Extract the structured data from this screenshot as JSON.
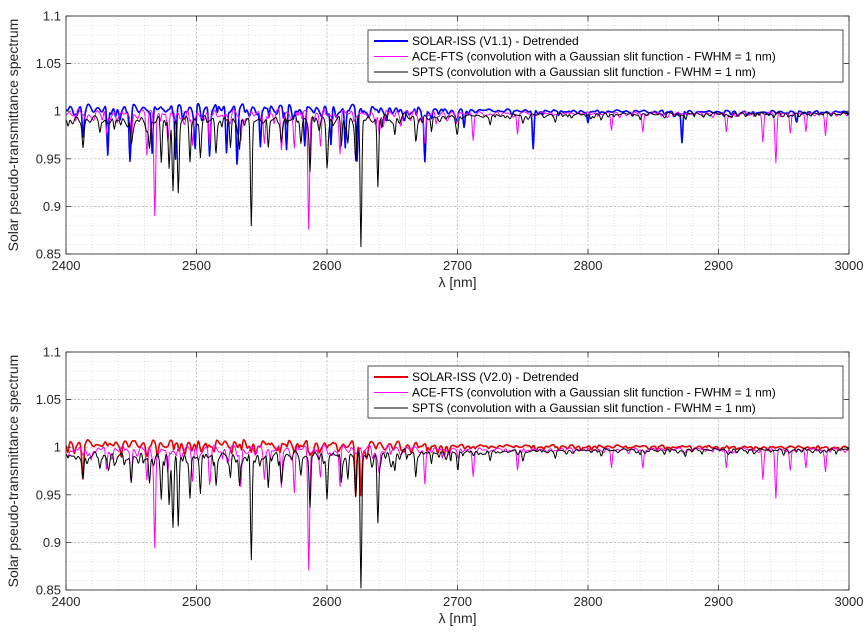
{
  "chart_data": [
    {
      "type": "line",
      "xlabel": "λ [nm]",
      "ylabel": "Solar pseudo-transmittance spectrum",
      "xlim": [
        2400,
        3000
      ],
      "ylim": [
        0.85,
        1.1
      ],
      "xticks": [
        "2400",
        "2500",
        "2600",
        "2700",
        "2800",
        "2900",
        "3000"
      ],
      "yticks": [
        "0.85",
        "0.9",
        "0.95",
        "1",
        "1.05",
        "1.1"
      ],
      "grid": true,
      "legend_position": "top-right",
      "series": [
        {
          "name": "SOLAR-ISS (V1.1) - Detrended",
          "color": "#0000ff",
          "baseline": [
            [
              2400,
              1.003
            ],
            [
              2550,
              1.004
            ],
            [
              2650,
              1.002
            ],
            [
              2800,
              1.0
            ],
            [
              3000,
              0.999
            ]
          ],
          "dips": [
            [
              2413,
              0.975
            ],
            [
              2432,
              0.95
            ],
            [
              2449,
              0.949
            ],
            [
              2466,
              0.962
            ],
            [
              2484,
              0.95
            ],
            [
              2499,
              0.963
            ],
            [
              2510,
              0.956
            ],
            [
              2523,
              0.956
            ],
            [
              2531,
              0.95
            ],
            [
              2549,
              0.96
            ],
            [
              2569,
              0.958
            ],
            [
              2583,
              0.963
            ],
            [
              2603,
              0.965
            ],
            [
              2614,
              0.972
            ],
            [
              2623,
              0.95
            ],
            [
              2675,
              0.955
            ],
            [
              2705,
              0.985
            ],
            [
              2758,
              0.96
            ],
            [
              2800,
              0.988
            ],
            [
              2872,
              0.966
            ],
            [
              2960,
              0.99
            ]
          ]
        },
        {
          "name": "ACE-FTS (convolution with a Gaussian slit function - FWHM = 1 nm)",
          "color": "#ff00ff",
          "baseline": [
            [
              2400,
              0.998
            ],
            [
              2600,
              0.998
            ],
            [
              3000,
              0.998
            ]
          ],
          "dips": [
            [
              2431,
              0.975
            ],
            [
              2450,
              0.972
            ],
            [
              2462,
              0.966
            ],
            [
              2468,
              0.899
            ],
            [
              2478,
              0.97
            ],
            [
              2497,
              0.965
            ],
            [
              2510,
              0.965
            ],
            [
              2534,
              0.968
            ],
            [
              2552,
              0.97
            ],
            [
              2565,
              0.96
            ],
            [
              2575,
              0.962
            ],
            [
              2586,
              0.884
            ],
            [
              2595,
              0.97
            ],
            [
              2610,
              0.966
            ],
            [
              2640,
              0.975
            ],
            [
              2675,
              0.966
            ],
            [
              2712,
              0.97
            ],
            [
              2746,
              0.976
            ],
            [
              2818,
              0.98
            ],
            [
              2842,
              0.978
            ],
            [
              2906,
              0.978
            ],
            [
              2934,
              0.967
            ],
            [
              2944,
              0.95
            ],
            [
              2955,
              0.976
            ],
            [
              2967,
              0.978
            ],
            [
              2982,
              0.974
            ]
          ]
        },
        {
          "name": "SPTS (convolution with a Gaussian slit function - FWHM = 1 nm)",
          "color": "#000000",
          "baseline": [
            [
              2400,
              0.991
            ],
            [
              2500,
              0.991
            ],
            [
              2600,
              0.992
            ],
            [
              2700,
              0.995
            ],
            [
              2800,
              0.997
            ],
            [
              3000,
              0.998
            ]
          ],
          "dips": [
            [
              2413,
              0.97
            ],
            [
              2426,
              0.98
            ],
            [
              2437,
              0.978
            ],
            [
              2450,
              0.97
            ],
            [
              2464,
              0.962
            ],
            [
              2473,
              0.945
            ],
            [
              2479,
              0.94
            ],
            [
              2482,
              0.928
            ],
            [
              2486,
              0.916
            ],
            [
              2495,
              0.95
            ],
            [
              2503,
              0.953
            ],
            [
              2515,
              0.963
            ],
            [
              2526,
              0.965
            ],
            [
              2533,
              0.96
            ],
            [
              2542,
              0.879
            ],
            [
              2555,
              0.96
            ],
            [
              2565,
              0.972
            ],
            [
              2580,
              0.974
            ],
            [
              2587,
              0.939
            ],
            [
              2600,
              0.95
            ],
            [
              2611,
              0.96
            ],
            [
              2616,
              0.968
            ],
            [
              2622,
              0.951
            ],
            [
              2626,
              0.856
            ],
            [
              2639,
              0.918
            ],
            [
              2652,
              0.975
            ],
            [
              2668,
              0.972
            ],
            [
              2680,
              0.984
            ],
            [
              2700,
              0.985
            ],
            [
              2725,
              0.986
            ],
            [
              2750,
              0.988
            ],
            [
              2775,
              0.989
            ],
            [
              2810,
              0.992
            ],
            [
              2840,
              0.992
            ],
            [
              2875,
              0.993
            ],
            [
              2910,
              0.994
            ],
            [
              2950,
              0.995
            ],
            [
              2980,
              0.995
            ]
          ]
        }
      ]
    },
    {
      "type": "line",
      "xlabel": "λ [nm]",
      "ylabel": "Solar pseudo-transmittance spectrum",
      "xlim": [
        2400,
        3000
      ],
      "ylim": [
        0.85,
        1.1
      ],
      "xticks": [
        "2400",
        "2500",
        "2600",
        "2700",
        "2800",
        "2900",
        "3000"
      ],
      "yticks": [
        "0.85",
        "0.9",
        "0.95",
        "1",
        "1.05",
        "1.1"
      ],
      "grid": true,
      "legend_position": "top-right",
      "series": [
        {
          "name": "SOLAR-ISS (V2.0) - Detrended",
          "color": "#e60000",
          "baseline": [
            [
              2400,
              1.004
            ],
            [
              2550,
              1.004
            ],
            [
              2650,
              1.002
            ],
            [
              2800,
              1.001
            ],
            [
              3000,
              1.0
            ]
          ],
          "dips": [
            [
              2413,
              0.976
            ],
            [
              2470,
              0.992
            ],
            [
              2500,
              0.994
            ],
            [
              2542,
              0.995
            ],
            [
              2587,
              0.992
            ],
            [
              2622,
              0.951
            ],
            [
              2626,
              0.952
            ],
            [
              2690,
              0.996
            ],
            [
              2760,
              0.996
            ],
            [
              2880,
              0.996
            ]
          ]
        },
        {
          "name": "ACE-FTS (convolution with a Gaussian slit function - FWHM = 1 nm)",
          "color": "#ff00ff",
          "baseline": [
            [
              2400,
              0.998
            ],
            [
              2600,
              0.998
            ],
            [
              3000,
              0.998
            ]
          ],
          "dips": [
            [
              2431,
              0.975
            ],
            [
              2450,
              0.972
            ],
            [
              2462,
              0.966
            ],
            [
              2468,
              0.899
            ],
            [
              2478,
              0.97
            ],
            [
              2497,
              0.965
            ],
            [
              2510,
              0.965
            ],
            [
              2534,
              0.968
            ],
            [
              2552,
              0.97
            ],
            [
              2565,
              0.96
            ],
            [
              2575,
              0.962
            ],
            [
              2586,
              0.884
            ],
            [
              2595,
              0.97
            ],
            [
              2610,
              0.966
            ],
            [
              2640,
              0.975
            ],
            [
              2675,
              0.966
            ],
            [
              2712,
              0.97
            ],
            [
              2746,
              0.976
            ],
            [
              2818,
              0.98
            ],
            [
              2842,
              0.978
            ],
            [
              2906,
              0.978
            ],
            [
              2934,
              0.967
            ],
            [
              2944,
              0.95
            ],
            [
              2955,
              0.976
            ],
            [
              2967,
              0.978
            ],
            [
              2982,
              0.974
            ]
          ]
        },
        {
          "name": "SPTS (convolution with a Gaussian slit function - FWHM = 1 nm)",
          "color": "#000000",
          "baseline": [
            [
              2400,
              0.991
            ],
            [
              2500,
              0.991
            ],
            [
              2600,
              0.992
            ],
            [
              2700,
              0.995
            ],
            [
              2800,
              0.997
            ],
            [
              3000,
              0.998
            ]
          ],
          "dips": [
            [
              2413,
              0.97
            ],
            [
              2426,
              0.98
            ],
            [
              2437,
              0.978
            ],
            [
              2450,
              0.97
            ],
            [
              2464,
              0.962
            ],
            [
              2473,
              0.945
            ],
            [
              2479,
              0.94
            ],
            [
              2482,
              0.928
            ],
            [
              2486,
              0.916
            ],
            [
              2495,
              0.95
            ],
            [
              2503,
              0.953
            ],
            [
              2515,
              0.963
            ],
            [
              2526,
              0.965
            ],
            [
              2533,
              0.96
            ],
            [
              2542,
              0.879
            ],
            [
              2555,
              0.96
            ],
            [
              2565,
              0.972
            ],
            [
              2580,
              0.974
            ],
            [
              2587,
              0.939
            ],
            [
              2600,
              0.95
            ],
            [
              2611,
              0.96
            ],
            [
              2616,
              0.968
            ],
            [
              2622,
              0.951
            ],
            [
              2626,
              0.856
            ],
            [
              2639,
              0.918
            ],
            [
              2652,
              0.975
            ],
            [
              2668,
              0.972
            ],
            [
              2680,
              0.984
            ],
            [
              2700,
              0.985
            ],
            [
              2725,
              0.986
            ],
            [
              2750,
              0.988
            ],
            [
              2775,
              0.989
            ],
            [
              2810,
              0.992
            ],
            [
              2840,
              0.992
            ],
            [
              2875,
              0.993
            ],
            [
              2910,
              0.994
            ],
            [
              2950,
              0.995
            ],
            [
              2980,
              0.995
            ]
          ]
        }
      ]
    }
  ]
}
